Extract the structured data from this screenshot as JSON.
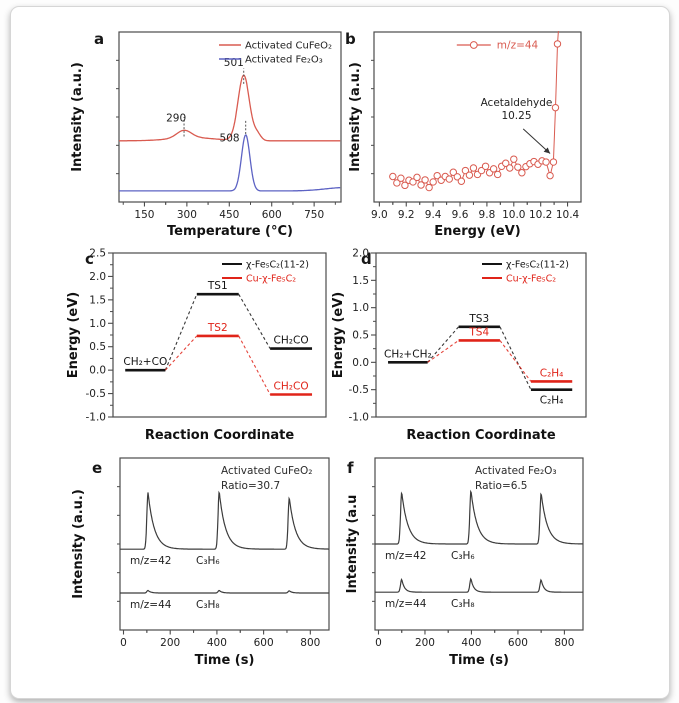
{
  "figure": {
    "panel_letters": [
      "a",
      "b",
      "c",
      "d",
      "e",
      "f"
    ]
  },
  "colors": {
    "red_curve": "#d95b50",
    "blue_curve": "#5d63c4",
    "red_line": "#e02419",
    "black_line": "#141414",
    "ms_trace": "#3c3c3c",
    "axis": "#4b4b4b"
  },
  "chart_data": [
    {
      "panel": "a",
      "type": "line",
      "xlabel": "Temperature (°C)",
      "ylabel": "Intensity (a.u.)",
      "xlim": [
        60,
        845
      ],
      "xticks": [
        150,
        300,
        450,
        600,
        750
      ],
      "tick_decimals": 0,
      "series": [
        {
          "name": "Activated CuFeO₂",
          "color": "#d95b50",
          "baseline": 0.36,
          "peaks": [
            {
              "c": 290,
              "h": 0.045,
              "w": 26
            },
            {
              "c": 320,
              "h": 0.018,
              "w": 80
            },
            {
              "c": 501,
              "h": 0.385,
              "w": 20
            },
            {
              "c": 549,
              "h": 0.038,
              "w": 13
            }
          ]
        },
        {
          "name": "Activated Fe₂O₃",
          "color": "#5d63c4",
          "baseline": 0.065,
          "peaks": [
            {
              "c": 508,
              "h": 0.33,
              "w": 15
            },
            {
              "c": 860,
              "h": 0.02,
              "w": 70
            }
          ]
        }
      ],
      "legend": [
        {
          "label": "Activated CuFeO₂",
          "color": "#d95b50"
        },
        {
          "label": "Activated Fe₂O₃",
          "color": "#5d63c4"
        }
      ],
      "peak_labels": [
        {
          "text": "290",
          "x": 262,
          "f": 0.475,
          "tick": 290,
          "f0": 0.385,
          "f1": 0.5
        },
        {
          "text": "501",
          "x": 466,
          "f": 0.8,
          "tick": 501,
          "f0": 0.695,
          "f1": 0.785
        },
        {
          "text": "508",
          "x": 451,
          "f": 0.355,
          "tick": 508,
          "f0": 0.4,
          "f1": 0.48
        }
      ]
    },
    {
      "panel": "b",
      "type": "scatter",
      "xlabel": "Energy (eV)",
      "ylabel": "Intensity (a.u.)",
      "xlim": [
        8.96,
        10.5
      ],
      "xticks": [
        9.0,
        9.2,
        9.4,
        9.6,
        9.8,
        10.0,
        10.2,
        10.4
      ],
      "tick_decimals": 1,
      "series": [
        {
          "name": "m/z=44",
          "color": "#d95b50",
          "points": [
            [
              9.1,
              0.15
            ],
            [
              9.13,
              0.112
            ],
            [
              9.16,
              0.14
            ],
            [
              9.19,
              0.098
            ],
            [
              9.22,
              0.128
            ],
            [
              9.25,
              0.118
            ],
            [
              9.28,
              0.145
            ],
            [
              9.31,
              0.1
            ],
            [
              9.34,
              0.13
            ],
            [
              9.37,
              0.085
            ],
            [
              9.4,
              0.118
            ],
            [
              9.43,
              0.155
            ],
            [
              9.46,
              0.128
            ],
            [
              9.49,
              0.15
            ],
            [
              9.52,
              0.135
            ],
            [
              9.55,
              0.175
            ],
            [
              9.58,
              0.148
            ],
            [
              9.61,
              0.122
            ],
            [
              9.64,
              0.185
            ],
            [
              9.67,
              0.158
            ],
            [
              9.7,
              0.2
            ],
            [
              9.73,
              0.162
            ],
            [
              9.76,
              0.185
            ],
            [
              9.79,
              0.21
            ],
            [
              9.82,
              0.172
            ],
            [
              9.85,
              0.195
            ],
            [
              9.88,
              0.162
            ],
            [
              9.91,
              0.21
            ],
            [
              9.94,
              0.228
            ],
            [
              9.97,
              0.2
            ],
            [
              10.0,
              0.252
            ],
            [
              10.03,
              0.205
            ],
            [
              10.06,
              0.172
            ],
            [
              10.09,
              0.208
            ],
            [
              10.12,
              0.225
            ],
            [
              10.15,
              0.238
            ],
            [
              10.18,
              0.222
            ],
            [
              10.21,
              0.242
            ],
            [
              10.24,
              0.235
            ],
            [
              10.27,
              0.155
            ],
            [
              10.295,
              0.235
            ],
            [
              10.31,
              0.555
            ],
            [
              10.325,
              0.93
            ],
            [
              10.34,
              1.1
            ]
          ]
        }
      ],
      "legend_marker": {
        "label": "m/z=44",
        "color": "#d95b50"
      },
      "annotation": {
        "line1": "Acetaldehyde",
        "line2": "10.25",
        "tx": 10.02,
        "tf": 0.565,
        "arrow": {
          "x1": 10.07,
          "f1": 0.43,
          "x2": 10.27,
          "f2": 0.285
        }
      }
    },
    {
      "panel": "c",
      "type": "energy",
      "xlabel": "Reaction Coordinate",
      "ylabel": "Energy (eV)",
      "xlim": [
        0,
        6.1
      ],
      "ylim": [
        -1.0,
        2.5
      ],
      "ytick_step": 0.5,
      "slots": [
        [
          0.35,
          1.5
        ],
        [
          2.4,
          3.6
        ],
        [
          4.5,
          5.7
        ]
      ],
      "series": [
        {
          "name": "χ-Fe₅C₂(11-2)",
          "color": "#141414",
          "levels": [
            {
              "label": "CH₂+CO",
              "e": 0.0
            },
            {
              "label": "TS1",
              "e": 1.62
            },
            {
              "label": "CH₂CO",
              "e": 0.46
            }
          ]
        },
        {
          "name": "Cu-χ-Fe₅C₂",
          "color": "#e02419",
          "levels": [
            {
              "e": 0.0,
              "draw": false
            },
            {
              "label": "TS2",
              "e": 0.73
            },
            {
              "label": "CH₂CO",
              "e": -0.52
            }
          ]
        }
      ],
      "legend": [
        {
          "label": "χ-Fe₅C₂(11-2)",
          "color": "#141414"
        },
        {
          "label": "Cu-χ-Fe₅C₂",
          "color": "#e02419"
        }
      ]
    },
    {
      "panel": "d",
      "type": "energy",
      "xlabel": "Reaction Coordinate",
      "ylabel": "Energy (eV)",
      "xlim": [
        0,
        6.1
      ],
      "ylim": [
        -1.0,
        2.0
      ],
      "ytick_step": 0.5,
      "slots": [
        [
          0.35,
          1.5
        ],
        [
          2.4,
          3.6
        ],
        [
          4.5,
          5.7
        ]
      ],
      "series": [
        {
          "name": "χ-Fe₅C₂(11-2)",
          "color": "#141414",
          "levels": [
            {
              "label": "CH₂+CH₂",
              "e": 0.0
            },
            {
              "label": "TS3",
              "e": 0.65
            },
            {
              "label": "C₂H₄",
              "e": -0.5,
              "below": true
            }
          ]
        },
        {
          "name": "Cu-χ-Fe₅C₂",
          "color": "#e02419",
          "levels": [
            {
              "e": 0.0,
              "draw": false
            },
            {
              "label": "TS4",
              "e": 0.4
            },
            {
              "label": "C₂H₄",
              "e": -0.35
            }
          ]
        }
      ],
      "legend": [
        {
          "label": "χ-Fe₅C₂(11-2)",
          "color": "#141414"
        },
        {
          "label": "Cu-χ-Fe₅C₂",
          "color": "#e02419"
        }
      ]
    },
    {
      "panel": "e",
      "type": "ms",
      "xlabel": "Time (s)",
      "ylabel": "Intensity (a.u.)",
      "xlim": [
        -15,
        880
      ],
      "xticks": [
        0,
        200,
        400,
        600,
        800
      ],
      "tick_decimals": 0,
      "corner": [
        "Activated CuFeO₂",
        "Ratio=30.7"
      ],
      "traces": [
        {
          "label": "m/z=42",
          "species": "C₃H₆",
          "baseline": 0.47,
          "rise": 5,
          "decay": 27,
          "peaks": [
            {
              "c": 105,
              "h": 0.33
            },
            {
              "c": 410,
              "h": 0.335
            },
            {
              "c": 710,
              "h": 0.3
            }
          ]
        },
        {
          "label": "m/z=44",
          "species": "C₃H₈",
          "baseline": 0.215,
          "rise": 5,
          "decay": 12,
          "peaks": [
            {
              "c": 105,
              "h": 0.015
            },
            {
              "c": 410,
              "h": 0.015
            },
            {
              "c": 710,
              "h": 0.013
            }
          ]
        }
      ]
    },
    {
      "panel": "f",
      "type": "ms",
      "xlabel": "Time (s)",
      "ylabel": "Intensity (a.u",
      "xlim": [
        -15,
        880
      ],
      "xticks": [
        0,
        200,
        400,
        600,
        800
      ],
      "tick_decimals": 0,
      "corner": [
        "Activated Fe₂O₃",
        "Ratio=6.5"
      ],
      "traces": [
        {
          "label": "m/z=42",
          "species": "C₃H₆",
          "baseline": 0.5,
          "rise": 5,
          "decay": 27,
          "peaks": [
            {
              "c": 100,
              "h": 0.3
            },
            {
              "c": 398,
              "h": 0.31
            },
            {
              "c": 700,
              "h": 0.295
            }
          ]
        },
        {
          "label": "m/z=44",
          "species": "C₃H₈",
          "baseline": 0.22,
          "rise": 5,
          "decay": 12,
          "peaks": [
            {
              "c": 100,
              "h": 0.075
            },
            {
              "c": 398,
              "h": 0.078
            },
            {
              "c": 700,
              "h": 0.072
            }
          ]
        }
      ]
    }
  ]
}
